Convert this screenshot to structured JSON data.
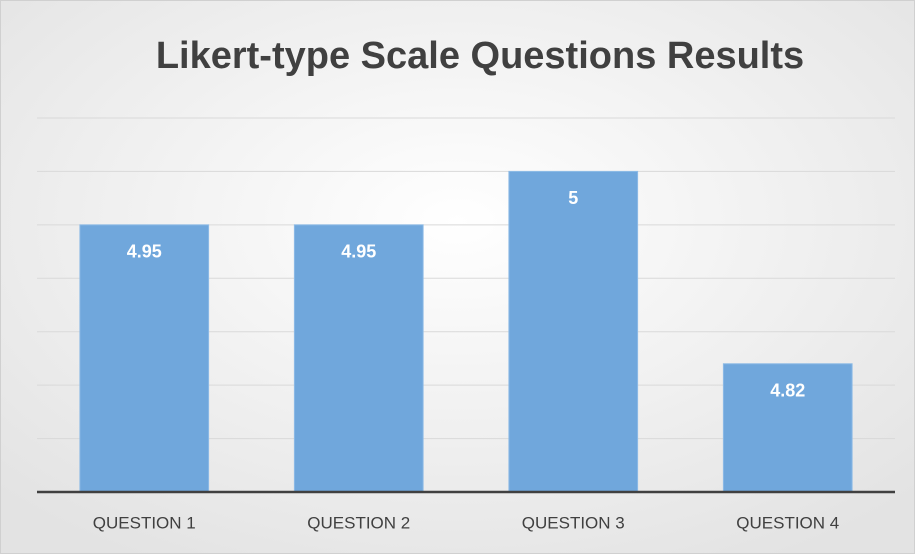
{
  "chart_data": {
    "type": "bar",
    "title": "Likert-type Scale Questions Results",
    "categories": [
      "QUESTION 1",
      "QUESTION 2",
      "QUESTION 3",
      "QUESTION 4"
    ],
    "values": [
      4.95,
      4.95,
      5,
      4.82
    ],
    "color": "#70a7dc",
    "ylim": [
      4.7,
      5.05
    ],
    "yticks": [
      4.7,
      4.75,
      4.8,
      4.85,
      4.9,
      4.95,
      5,
      5.05
    ],
    "grid": true
  }
}
